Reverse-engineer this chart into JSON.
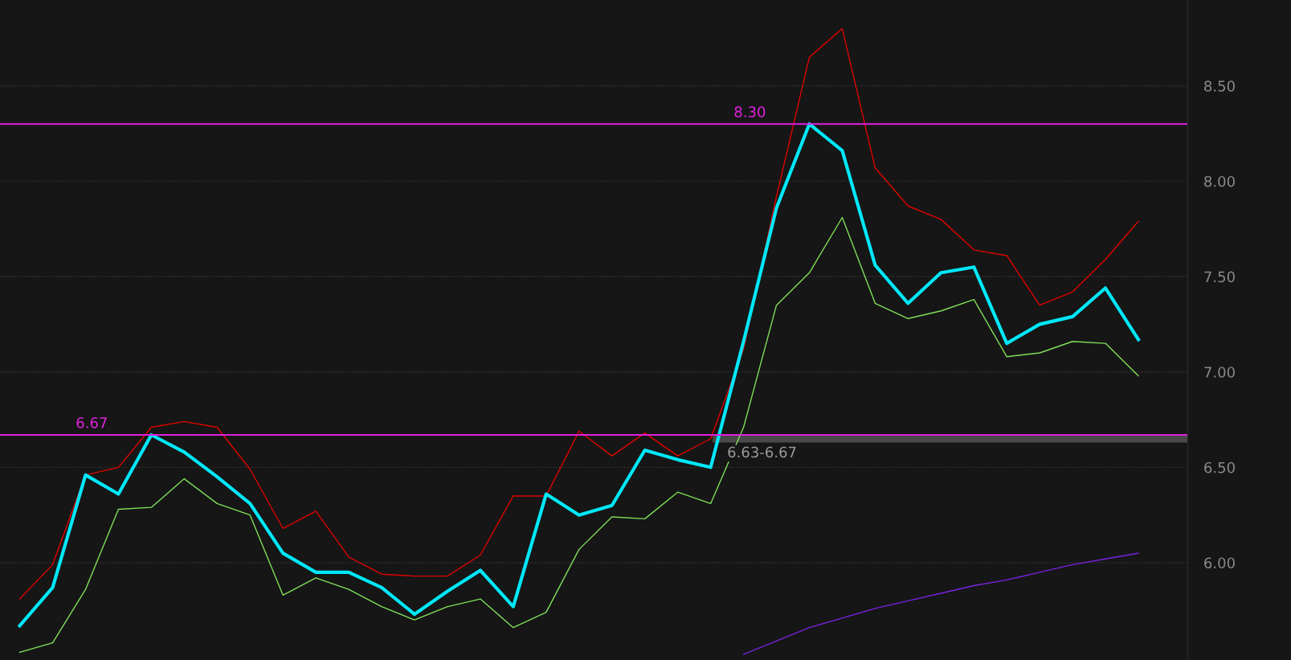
{
  "chart_data": {
    "type": "line",
    "categories": [
      null,
      null,
      null,
      null,
      null,
      null,
      null,
      null,
      null,
      null,
      null,
      null,
      null,
      null,
      null,
      null,
      null,
      null,
      null,
      null,
      null,
      null,
      null,
      null,
      null,
      null,
      null,
      null,
      null,
      null,
      null,
      null,
      null,
      null,
      null
    ],
    "series": [
      {
        "color": "#e00000",
        "values": [
          5.81,
          5.99,
          6.46,
          6.5,
          6.71,
          6.74,
          6.71,
          6.49,
          6.18,
          6.27,
          6.03,
          5.94,
          5.93,
          5.93,
          6.04,
          6.35,
          6.35,
          6.69,
          6.56,
          6.68,
          6.56,
          6.65,
          7.12,
          7.92,
          8.65,
          8.8,
          8.07,
          7.87,
          7.8,
          7.64,
          7.61,
          7.35,
          7.42,
          7.59,
          7.79
        ]
      },
      {
        "color": "#7fe05a",
        "values": [
          5.53,
          5.58,
          5.86,
          6.28,
          6.29,
          6.44,
          6.31,
          6.25,
          5.83,
          5.92,
          5.86,
          5.77,
          5.7,
          5.77,
          5.81,
          5.66,
          5.74,
          6.07,
          6.24,
          6.23,
          6.37,
          6.31,
          6.71,
          7.35,
          7.52,
          7.81,
          7.36,
          7.28,
          7.32,
          7.38,
          7.08,
          7.1,
          7.16,
          7.15,
          6.98
        ]
      },
      {
        "color": "#7a22e0",
        "values": [
          null,
          null,
          null,
          null,
          null,
          null,
          null,
          null,
          null,
          null,
          null,
          null,
          null,
          null,
          null,
          null,
          null,
          null,
          null,
          null,
          null,
          null,
          5.52,
          5.59,
          5.66,
          5.71,
          5.76,
          5.8,
          5.84,
          5.88,
          5.91,
          5.95,
          5.99,
          6.02,
          6.05
        ]
      },
      {
        "color": "#00e8f8",
        "values": [
          5.67,
          5.87,
          6.46,
          6.36,
          6.67,
          6.58,
          6.45,
          6.31,
          6.05,
          5.95,
          5.95,
          5.87,
          5.73,
          5.85,
          5.96,
          5.77,
          6.36,
          6.25,
          6.3,
          6.59,
          6.54,
          6.5,
          7.16,
          7.86,
          8.3,
          8.16,
          7.56,
          7.36,
          7.52,
          7.55,
          7.15,
          7.25,
          7.29,
          7.44,
          7.17
        ]
      }
    ],
    "ylim": [
      5.49,
      8.95
    ],
    "yticks": [
      {
        "value": 6,
        "label": "6.00"
      },
      {
        "value": 6.5,
        "label": "6.50"
      },
      {
        "value": 7,
        "label": "7.00"
      },
      {
        "value": 7.5,
        "label": "7.50"
      },
      {
        "value": 8,
        "label": "8.00"
      },
      {
        "value": 8.5,
        "label": "8.50"
      }
    ],
    "tick_labels": "y",
    "grid": "y",
    "legend": false,
    "marker": "none",
    "line_style": "solid",
    "ref_lines": [
      {
        "axis": "y",
        "value": 6.67,
        "label": "6.67",
        "color": "#e020e0"
      },
      {
        "axis": "y",
        "value": 8.3,
        "label": "8.30",
        "color": "#e020e0"
      }
    ],
    "bands": [
      {
        "axis": "y",
        "from": 6.63,
        "to": 6.67,
        "label": "6.63-6.67",
        "color": "#606060"
      }
    ]
  }
}
